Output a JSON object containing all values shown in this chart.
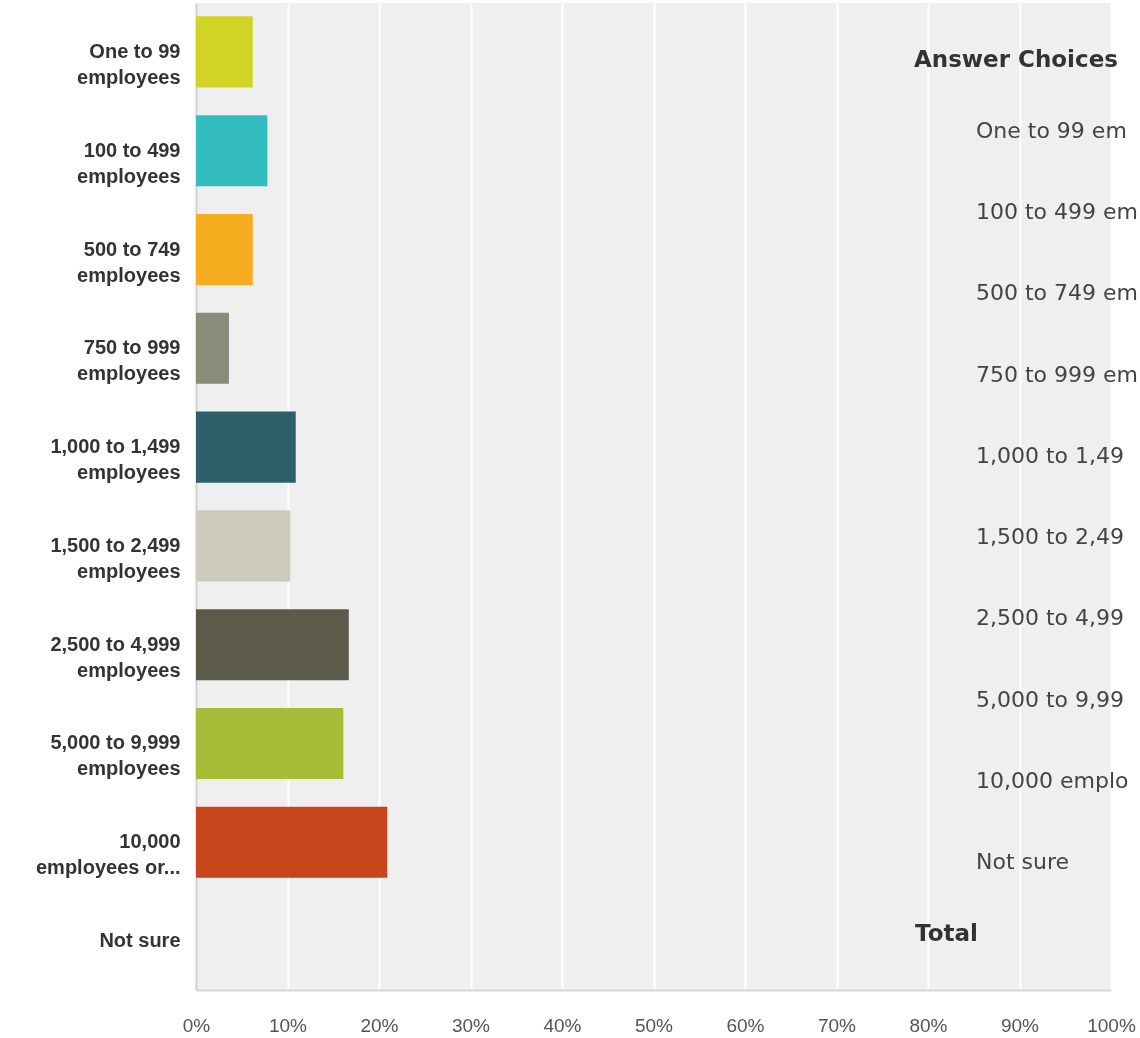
{
  "chart_data": {
    "type": "bar",
    "orientation": "horizontal",
    "categories": [
      "One to 99 employees",
      "100 to 499 employees",
      "500 to 749 employees",
      "750 to 999 employees",
      "1,000 to 1,499 employees",
      "1,500 to 2,499 employees",
      "2,500 to 4,999 employees",
      "5,000 to 9,999 employees",
      "10,000 employees or...",
      "Not sure"
    ],
    "values": [
      6.2,
      7.8,
      6.2,
      3.6,
      10.9,
      10.3,
      16.7,
      16.1,
      20.9,
      0
    ],
    "colors": [
      "#cfd426",
      "#33bdbe",
      "#f5ad1f",
      "#8a8b78",
      "#2d5f6b",
      "#cdcbbd",
      "#5c5b4a",
      "#a8bc38",
      "#c7461b",
      "#c7461b"
    ],
    "xlim": [
      0,
      100
    ],
    "xticks": [
      {
        "value": 0,
        "label": "0%"
      },
      {
        "value": 10,
        "label": "10%"
      },
      {
        "value": 20,
        "label": "20%"
      },
      {
        "value": 30,
        "label": "30%"
      },
      {
        "value": 40,
        "label": "40%"
      },
      {
        "value": 50,
        "label": "50%"
      },
      {
        "value": 60,
        "label": "60%"
      },
      {
        "value": 70,
        "label": "70%"
      },
      {
        "value": 80,
        "label": "80%"
      },
      {
        "value": 90,
        "label": "90%"
      },
      {
        "value": 100,
        "label": "100%"
      }
    ],
    "grid": "x",
    "annotations": [
      "Answer Choices",
      "One to 99 em",
      "100 to 499 em",
      "500 to 749 em",
      "750 to 999 em",
      "1,000 to 1,49",
      "1,500 to 2,49",
      "2,500 to 4,99",
      "5,000 to 9,99",
      "10,000 emplo",
      "Not sure",
      "Total"
    ]
  }
}
